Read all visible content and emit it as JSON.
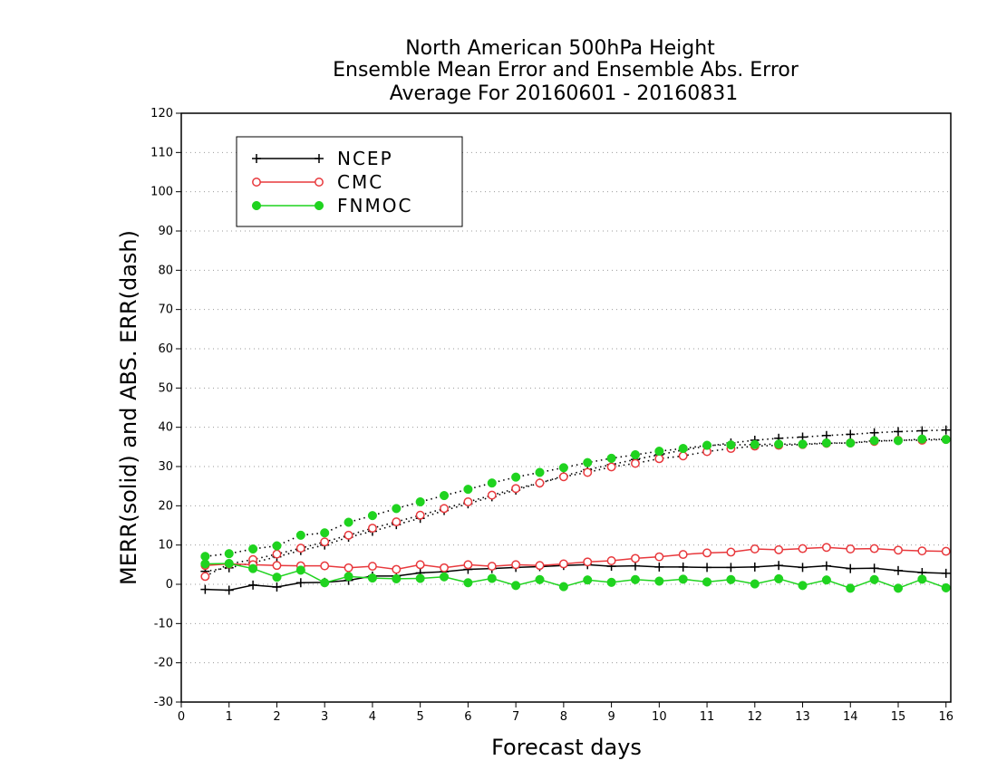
{
  "chart_data": {
    "type": "line",
    "title_lines": [
      "North American 500hPa Height",
      "Ensemble Mean Error and Ensemble Abs. Error",
      "Average For 20160601 - 20160831"
    ],
    "xlabel": "Forecast days",
    "ylabel": "MERR(solid) and ABS. ERR(dash)",
    "xlim": [
      0,
      16.1
    ],
    "ylim": [
      -30,
      120
    ],
    "x_ticks": [
      0,
      1,
      2,
      3,
      4,
      5,
      6,
      7,
      8,
      9,
      10,
      11,
      12,
      13,
      14,
      15,
      16
    ],
    "y_ticks": [
      -30,
      -20,
      -10,
      0,
      10,
      20,
      30,
      40,
      50,
      60,
      70,
      80,
      90,
      100,
      110,
      120
    ],
    "grid": "horizontal dotted",
    "legend_position": "top-left",
    "x": [
      0.5,
      1,
      1.5,
      2,
      2.5,
      3,
      3.5,
      4,
      4.5,
      5,
      5.5,
      6,
      6.5,
      7,
      7.5,
      8,
      8.5,
      9,
      9.5,
      10,
      10.5,
      11,
      11.5,
      12,
      12.5,
      13,
      13.5,
      14,
      14.5,
      15,
      15.5,
      16
    ],
    "series": [
      {
        "name": "NCEP",
        "color": "#000000",
        "marker": "plus",
        "merr": [
          -1.3,
          -1.5,
          -0.2,
          -0.7,
          0.4,
          0.5,
          1.0,
          2.1,
          2.1,
          2.9,
          3.2,
          3.8,
          4.0,
          4.3,
          4.5,
          4.8,
          5.0,
          4.6,
          4.7,
          4.4,
          4.4,
          4.3,
          4.3,
          4.4,
          4.8,
          4.3,
          4.7,
          4.0,
          4.1,
          3.5,
          3.0,
          2.8
        ],
        "abs_err": [
          3.3,
          4.2,
          5.5,
          7.0,
          8.6,
          10.0,
          12.0,
          13.5,
          15.2,
          16.8,
          18.8,
          20.5,
          22.3,
          24.0,
          25.8,
          27.6,
          29.2,
          30.5,
          31.8,
          33.0,
          34.2,
          35.2,
          36.0,
          36.7,
          37.2,
          37.5,
          37.9,
          38.2,
          38.6,
          38.9,
          39.1,
          39.3
        ]
      },
      {
        "name": "CMC",
        "color": "#e8383c",
        "marker": "open-circle",
        "merr": [
          4.8,
          5.2,
          5.0,
          4.8,
          4.7,
          4.7,
          4.2,
          4.6,
          3.8,
          5.0,
          4.2,
          5.0,
          4.6,
          5.0,
          4.8,
          5.2,
          5.7,
          6.0,
          6.6,
          7.0,
          7.6,
          8.0,
          8.2,
          9.0,
          8.8,
          9.1,
          9.4,
          9.0,
          9.1,
          8.7,
          8.5,
          8.4
        ],
        "abs_err": [
          2.0,
          5.2,
          6.3,
          7.7,
          9.2,
          10.8,
          12.5,
          14.3,
          15.9,
          17.6,
          19.3,
          21.0,
          22.7,
          24.4,
          25.8,
          27.4,
          28.5,
          29.9,
          30.8,
          32.0,
          32.7,
          33.8,
          34.6,
          35.2,
          35.4,
          35.6,
          35.9,
          36.0,
          36.4,
          36.7,
          36.7,
          36.9
        ]
      },
      {
        "name": "FNMOC",
        "color": "#1fd31f",
        "marker": "filled-circle",
        "merr": [
          5.2,
          5.3,
          4.0,
          1.8,
          3.6,
          0.4,
          2.0,
          1.6,
          1.4,
          1.5,
          1.9,
          0.4,
          1.5,
          -0.3,
          1.2,
          -0.6,
          1.1,
          0.5,
          1.2,
          0.8,
          1.3,
          0.6,
          1.2,
          0.1,
          1.4,
          -0.3,
          1.1,
          -1.0,
          1.2,
          -1.0,
          1.3,
          -0.9
        ],
        "abs_err": [
          7.1,
          7.8,
          9.0,
          9.8,
          12.5,
          13.1,
          15.8,
          17.5,
          19.3,
          21.0,
          22.6,
          24.2,
          25.8,
          27.3,
          28.5,
          29.7,
          31.0,
          32.1,
          33.0,
          33.9,
          34.6,
          35.4,
          35.5,
          35.6,
          35.7,
          35.7,
          36.0,
          36.0,
          36.6,
          36.6,
          37.0,
          36.9
        ]
      }
    ]
  }
}
